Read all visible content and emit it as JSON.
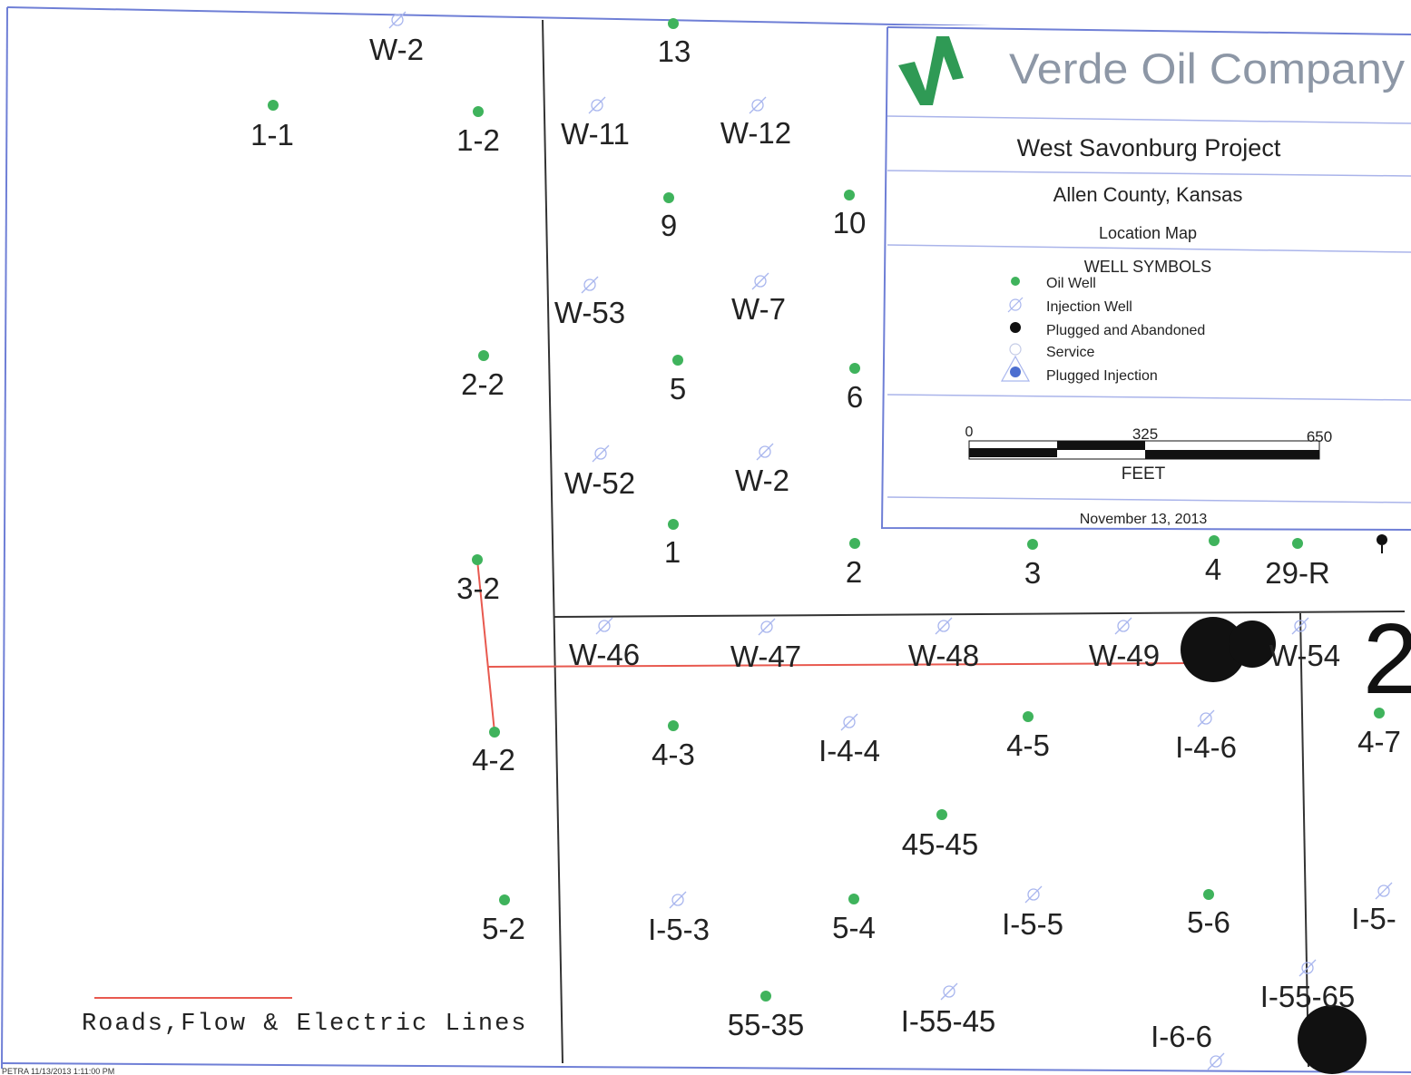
{
  "colors": {
    "frame": "#6f7fd6",
    "section_line": "#333333",
    "oil_well": "#3fb35c",
    "injection_well": "#a9b6ee",
    "plugged": "#111111",
    "plugged_injection": "#4d6fd0",
    "road_line": "#e8594f",
    "logo": "#2f9a55"
  },
  "legend": {
    "company": "Verde Oil Company",
    "project": "West Savonburg Project",
    "county": "Allen County, Kansas",
    "map_type": "Location Map",
    "symbols_title": "WELL SYMBOLS",
    "symbols": [
      {
        "label": "Oil Well",
        "icon": "oil-well-dot"
      },
      {
        "label": "Injection Well",
        "icon": "injection-well-circle-slash"
      },
      {
        "label": "Plugged and Abandoned",
        "icon": "plugged-dot"
      },
      {
        "label": "Service",
        "icon": "service-circle"
      },
      {
        "label": "Plugged Injection",
        "icon": "plugged-injection-triangle"
      }
    ],
    "scale": {
      "tick_0": "0",
      "tick_mid": "325",
      "tick_end": "650",
      "unit": "FEET"
    },
    "date": "November 13, 2013"
  },
  "lines_legend": {
    "label": "Roads,Flow & Electric Lines"
  },
  "footer_text": "PETRA 11/13/2013 1:11:00 PM",
  "section_number": "2",
  "wells": [
    {
      "label": "1-1",
      "type": "oil"
    },
    {
      "label": "1-2",
      "type": "oil"
    },
    {
      "label": "W-2",
      "type": "injection"
    },
    {
      "label": "13",
      "type": "oil"
    },
    {
      "label": "W-11",
      "type": "injection"
    },
    {
      "label": "W-12",
      "type": "injection"
    },
    {
      "label": "9",
      "type": "oil"
    },
    {
      "label": "10",
      "type": "oil"
    },
    {
      "label": "W-53",
      "type": "injection"
    },
    {
      "label": "W-7",
      "type": "injection"
    },
    {
      "label": "2-2",
      "type": "oil"
    },
    {
      "label": "5",
      "type": "oil"
    },
    {
      "label": "6",
      "type": "oil"
    },
    {
      "label": "W-52",
      "type": "injection"
    },
    {
      "label": "W-2",
      "type": "injection"
    },
    {
      "label": "1",
      "type": "oil"
    },
    {
      "label": "2",
      "type": "oil"
    },
    {
      "label": "3",
      "type": "oil"
    },
    {
      "label": "4",
      "type": "oil"
    },
    {
      "label": "29-R",
      "type": "oil"
    },
    {
      "label": "3-2",
      "type": "oil"
    },
    {
      "label": "W-46",
      "type": "injection"
    },
    {
      "label": "W-47",
      "type": "injection"
    },
    {
      "label": "W-48",
      "type": "injection"
    },
    {
      "label": "W-49",
      "type": "injection"
    },
    {
      "label": "W-54",
      "type": "injection"
    },
    {
      "label": "4-2",
      "type": "oil"
    },
    {
      "label": "4-3",
      "type": "oil"
    },
    {
      "label": "I-4-4",
      "type": "injection"
    },
    {
      "label": "4-5",
      "type": "oil"
    },
    {
      "label": "I-4-6",
      "type": "injection"
    },
    {
      "label": "4-7",
      "type": "oil"
    },
    {
      "label": "45-45",
      "type": "oil"
    },
    {
      "label": "5-2",
      "type": "oil"
    },
    {
      "label": "I-5-3",
      "type": "injection"
    },
    {
      "label": "5-4",
      "type": "oil"
    },
    {
      "label": "I-5-5",
      "type": "injection"
    },
    {
      "label": "5-6",
      "type": "oil"
    },
    {
      "label": "I-5-",
      "type": "injection"
    },
    {
      "label": "55-35",
      "type": "oil"
    },
    {
      "label": "I-55-45",
      "type": "injection"
    },
    {
      "label": "I-6-6",
      "type": "injection"
    },
    {
      "label": "I-55-65",
      "type": "injection"
    }
  ]
}
